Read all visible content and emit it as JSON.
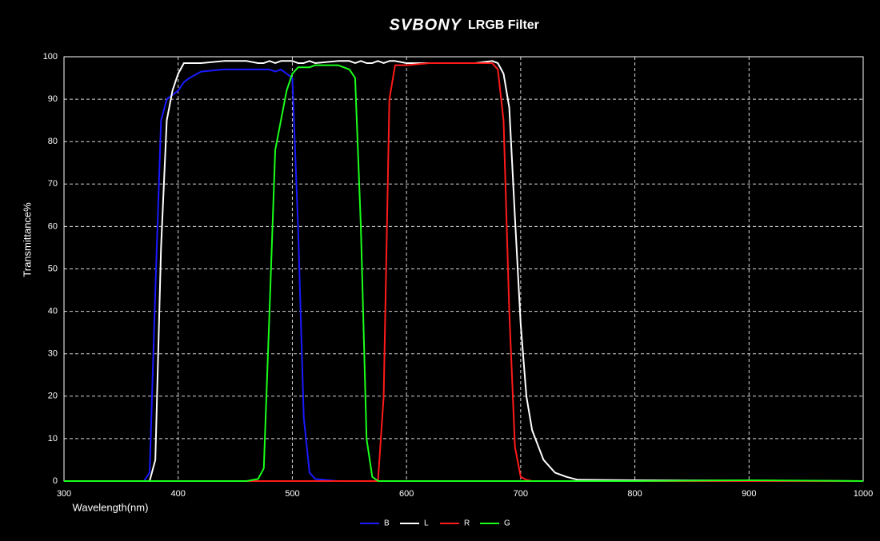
{
  "chart_data": {
    "type": "line",
    "brand": "SVBONY",
    "title": "LRGB Filter",
    "x_label": "Wavelength(nm)",
    "y_label": "Transmittance%",
    "x": [
      300,
      370,
      375,
      380,
      385,
      390,
      395,
      400,
      405,
      410,
      420,
      440,
      460,
      470,
      475,
      480,
      485,
      490,
      495,
      500,
      505,
      510,
      515,
      520,
      540,
      550,
      555,
      560,
      565,
      570,
      575,
      580,
      585,
      590,
      600,
      620,
      640,
      660,
      675,
      680,
      685,
      690,
      695,
      700,
      705,
      710,
      720,
      730,
      740,
      750,
      800,
      900,
      1000
    ],
    "series": [
      {
        "name": "B",
        "color": "#1a1aff",
        "values": [
          0,
          0,
          2,
          45,
          85,
          90,
          91,
          92,
          94,
          95,
          96.5,
          97,
          97,
          97,
          97,
          97,
          96.5,
          97,
          96,
          95,
          60,
          15,
          2,
          0.5,
          0,
          0,
          0,
          0,
          0,
          0,
          0,
          0,
          0,
          0,
          0,
          0,
          0,
          0,
          0,
          0,
          0,
          0,
          0,
          0,
          0,
          0,
          0,
          0,
          0,
          0,
          0,
          0,
          0
        ]
      },
      {
        "name": "L",
        "color": "#ffffff",
        "values": [
          0,
          0,
          0,
          5,
          55,
          85,
          92,
          96,
          98.5,
          98.5,
          98.5,
          99,
          99,
          98.5,
          98.5,
          99,
          98.5,
          99,
          99,
          99,
          98.5,
          98.5,
          99,
          98.5,
          99,
          99,
          98.5,
          99,
          98.5,
          98.5,
          99,
          98.5,
          99,
          99,
          98.5,
          98.5,
          98.5,
          98.5,
          99,
          98.5,
          96,
          88,
          62,
          37,
          20,
          12,
          5,
          2,
          1,
          0.3,
          0.2,
          0.1,
          0
        ]
      },
      {
        "name": "R",
        "color": "#ff1a1a",
        "values": [
          0,
          0,
          0,
          0,
          0,
          0,
          0,
          0,
          0,
          0,
          0,
          0,
          0,
          0,
          0,
          0,
          0,
          0,
          0,
          0,
          0,
          0,
          0,
          0,
          0,
          0,
          0,
          0,
          0,
          0,
          0,
          20,
          90,
          98,
          98,
          98.5,
          98.5,
          98.5,
          98.5,
          97,
          85,
          40,
          8,
          1,
          0.3,
          0,
          0,
          0,
          0,
          0,
          0,
          0,
          0
        ]
      },
      {
        "name": "G",
        "color": "#1aff1a",
        "values": [
          0,
          0,
          0,
          0,
          0,
          0,
          0,
          0,
          0,
          0,
          0,
          0,
          0,
          0.5,
          3,
          40,
          78,
          85,
          92,
          96,
          97.5,
          97.5,
          97.5,
          98,
          98,
          97,
          95,
          60,
          10,
          1,
          0,
          0,
          0,
          0,
          0,
          0,
          0,
          0,
          0,
          0,
          0,
          0,
          0,
          0,
          0,
          0,
          0,
          0,
          0,
          0,
          0,
          0.2,
          0
        ]
      }
    ],
    "xlim": [
      300,
      1000
    ],
    "ylim": [
      0,
      100
    ],
    "xticks": [
      300,
      400,
      500,
      600,
      700,
      800,
      900,
      1000
    ],
    "yticks": [
      0,
      10,
      20,
      30,
      40,
      50,
      60,
      70,
      80,
      90,
      100
    ],
    "grid": true,
    "legend": "bottom"
  }
}
